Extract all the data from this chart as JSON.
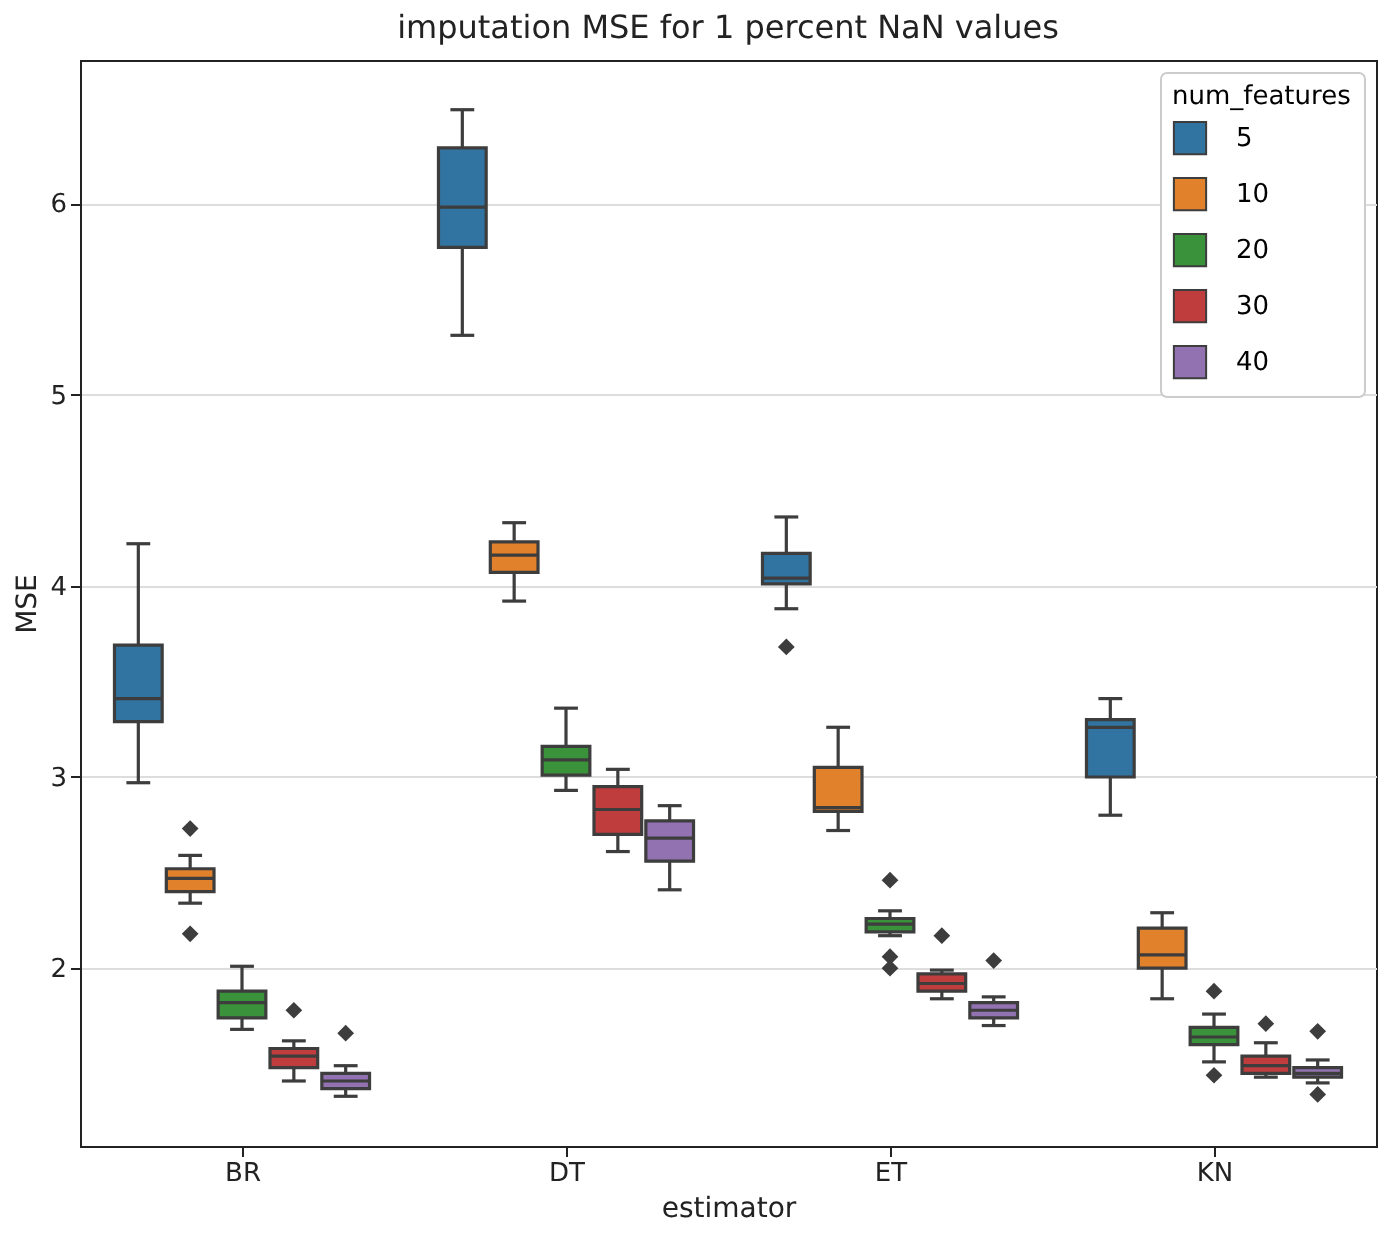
{
  "chart_data": {
    "type": "box",
    "title": "imputation MSE for 1 percent NaN values",
    "xlabel": "estimator",
    "ylabel": "MSE",
    "legend_title": "num_features",
    "legend": "top right",
    "grid": "y",
    "marker": "diamond",
    "categories": [
      "BR",
      "DT",
      "ET",
      "KN"
    ],
    "ylim": [
      1.07,
      6.75
    ],
    "yticks": [
      2,
      3,
      4,
      5,
      6
    ],
    "series": [
      {
        "name": "5",
        "color": "#3274a1",
        "boxes": [
          {
            "low": 2.97,
            "q1": 3.29,
            "median": 3.41,
            "q3": 3.69,
            "high": 4.22
          },
          {
            "low": 5.31,
            "q1": 5.77,
            "median": 5.98,
            "q3": 6.29,
            "high": 6.49
          },
          {
            "low": 3.88,
            "q1": 4.01,
            "median": 4.04,
            "q3": 4.17,
            "high": 4.36,
            "outliers": [
              3.68
            ]
          },
          {
            "low": 2.8,
            "q1": 3.0,
            "median": 3.26,
            "q3": 3.3,
            "high": 3.41
          }
        ]
      },
      {
        "name": "10",
        "color": "#e1812c",
        "boxes": [
          {
            "low": 2.34,
            "q1": 2.4,
            "median": 2.47,
            "q3": 2.52,
            "high": 2.59,
            "outliers": [
              2.73,
              2.18
            ]
          },
          {
            "low": 3.92,
            "q1": 4.07,
            "median": 4.16,
            "q3": 4.23,
            "high": 4.33
          },
          {
            "low": 2.72,
            "q1": 2.82,
            "median": 2.84,
            "q3": 3.05,
            "high": 3.26
          },
          {
            "low": 1.84,
            "q1": 2.0,
            "median": 2.07,
            "q3": 2.21,
            "high": 2.29
          }
        ]
      },
      {
        "name": "20",
        "color": "#3a923a",
        "boxes": [
          {
            "low": 1.68,
            "q1": 1.74,
            "median": 1.82,
            "q3": 1.88,
            "high": 2.01
          },
          {
            "low": 2.93,
            "q1": 3.01,
            "median": 3.09,
            "q3": 3.16,
            "high": 3.36
          },
          {
            "low": 2.17,
            "q1": 2.19,
            "median": 2.23,
            "q3": 2.26,
            "high": 2.3,
            "outliers": [
              2.46,
              2.06,
              2.0
            ]
          },
          {
            "low": 1.51,
            "q1": 1.6,
            "median": 1.64,
            "q3": 1.69,
            "high": 1.76,
            "outliers": [
              1.88,
              1.44
            ]
          }
        ]
      },
      {
        "name": "30",
        "color": "#c03d3e",
        "boxes": [
          {
            "low": 1.41,
            "q1": 1.48,
            "median": 1.54,
            "q3": 1.58,
            "high": 1.62,
            "outliers": [
              1.78
            ]
          },
          {
            "low": 2.61,
            "q1": 2.7,
            "median": 2.83,
            "q3": 2.95,
            "high": 3.04
          },
          {
            "low": 1.84,
            "q1": 1.88,
            "median": 1.92,
            "q3": 1.97,
            "high": 1.99,
            "outliers": [
              2.17
            ]
          },
          {
            "low": 1.43,
            "q1": 1.45,
            "median": 1.49,
            "q3": 1.54,
            "high": 1.61,
            "outliers": [
              1.71
            ]
          }
        ]
      },
      {
        "name": "40",
        "color": "#9372b2",
        "boxes": [
          {
            "low": 1.33,
            "q1": 1.37,
            "median": 1.41,
            "q3": 1.45,
            "high": 1.49,
            "outliers": [
              1.66
            ]
          },
          {
            "low": 2.41,
            "q1": 2.56,
            "median": 2.68,
            "q3": 2.77,
            "high": 2.85
          },
          {
            "low": 1.7,
            "q1": 1.74,
            "median": 1.78,
            "q3": 1.82,
            "high": 1.85,
            "outliers": [
              2.04
            ]
          },
          {
            "low": 1.4,
            "q1": 1.43,
            "median": 1.45,
            "q3": 1.48,
            "high": 1.52,
            "outliers": [
              1.67,
              1.34
            ]
          }
        ]
      }
    ]
  }
}
